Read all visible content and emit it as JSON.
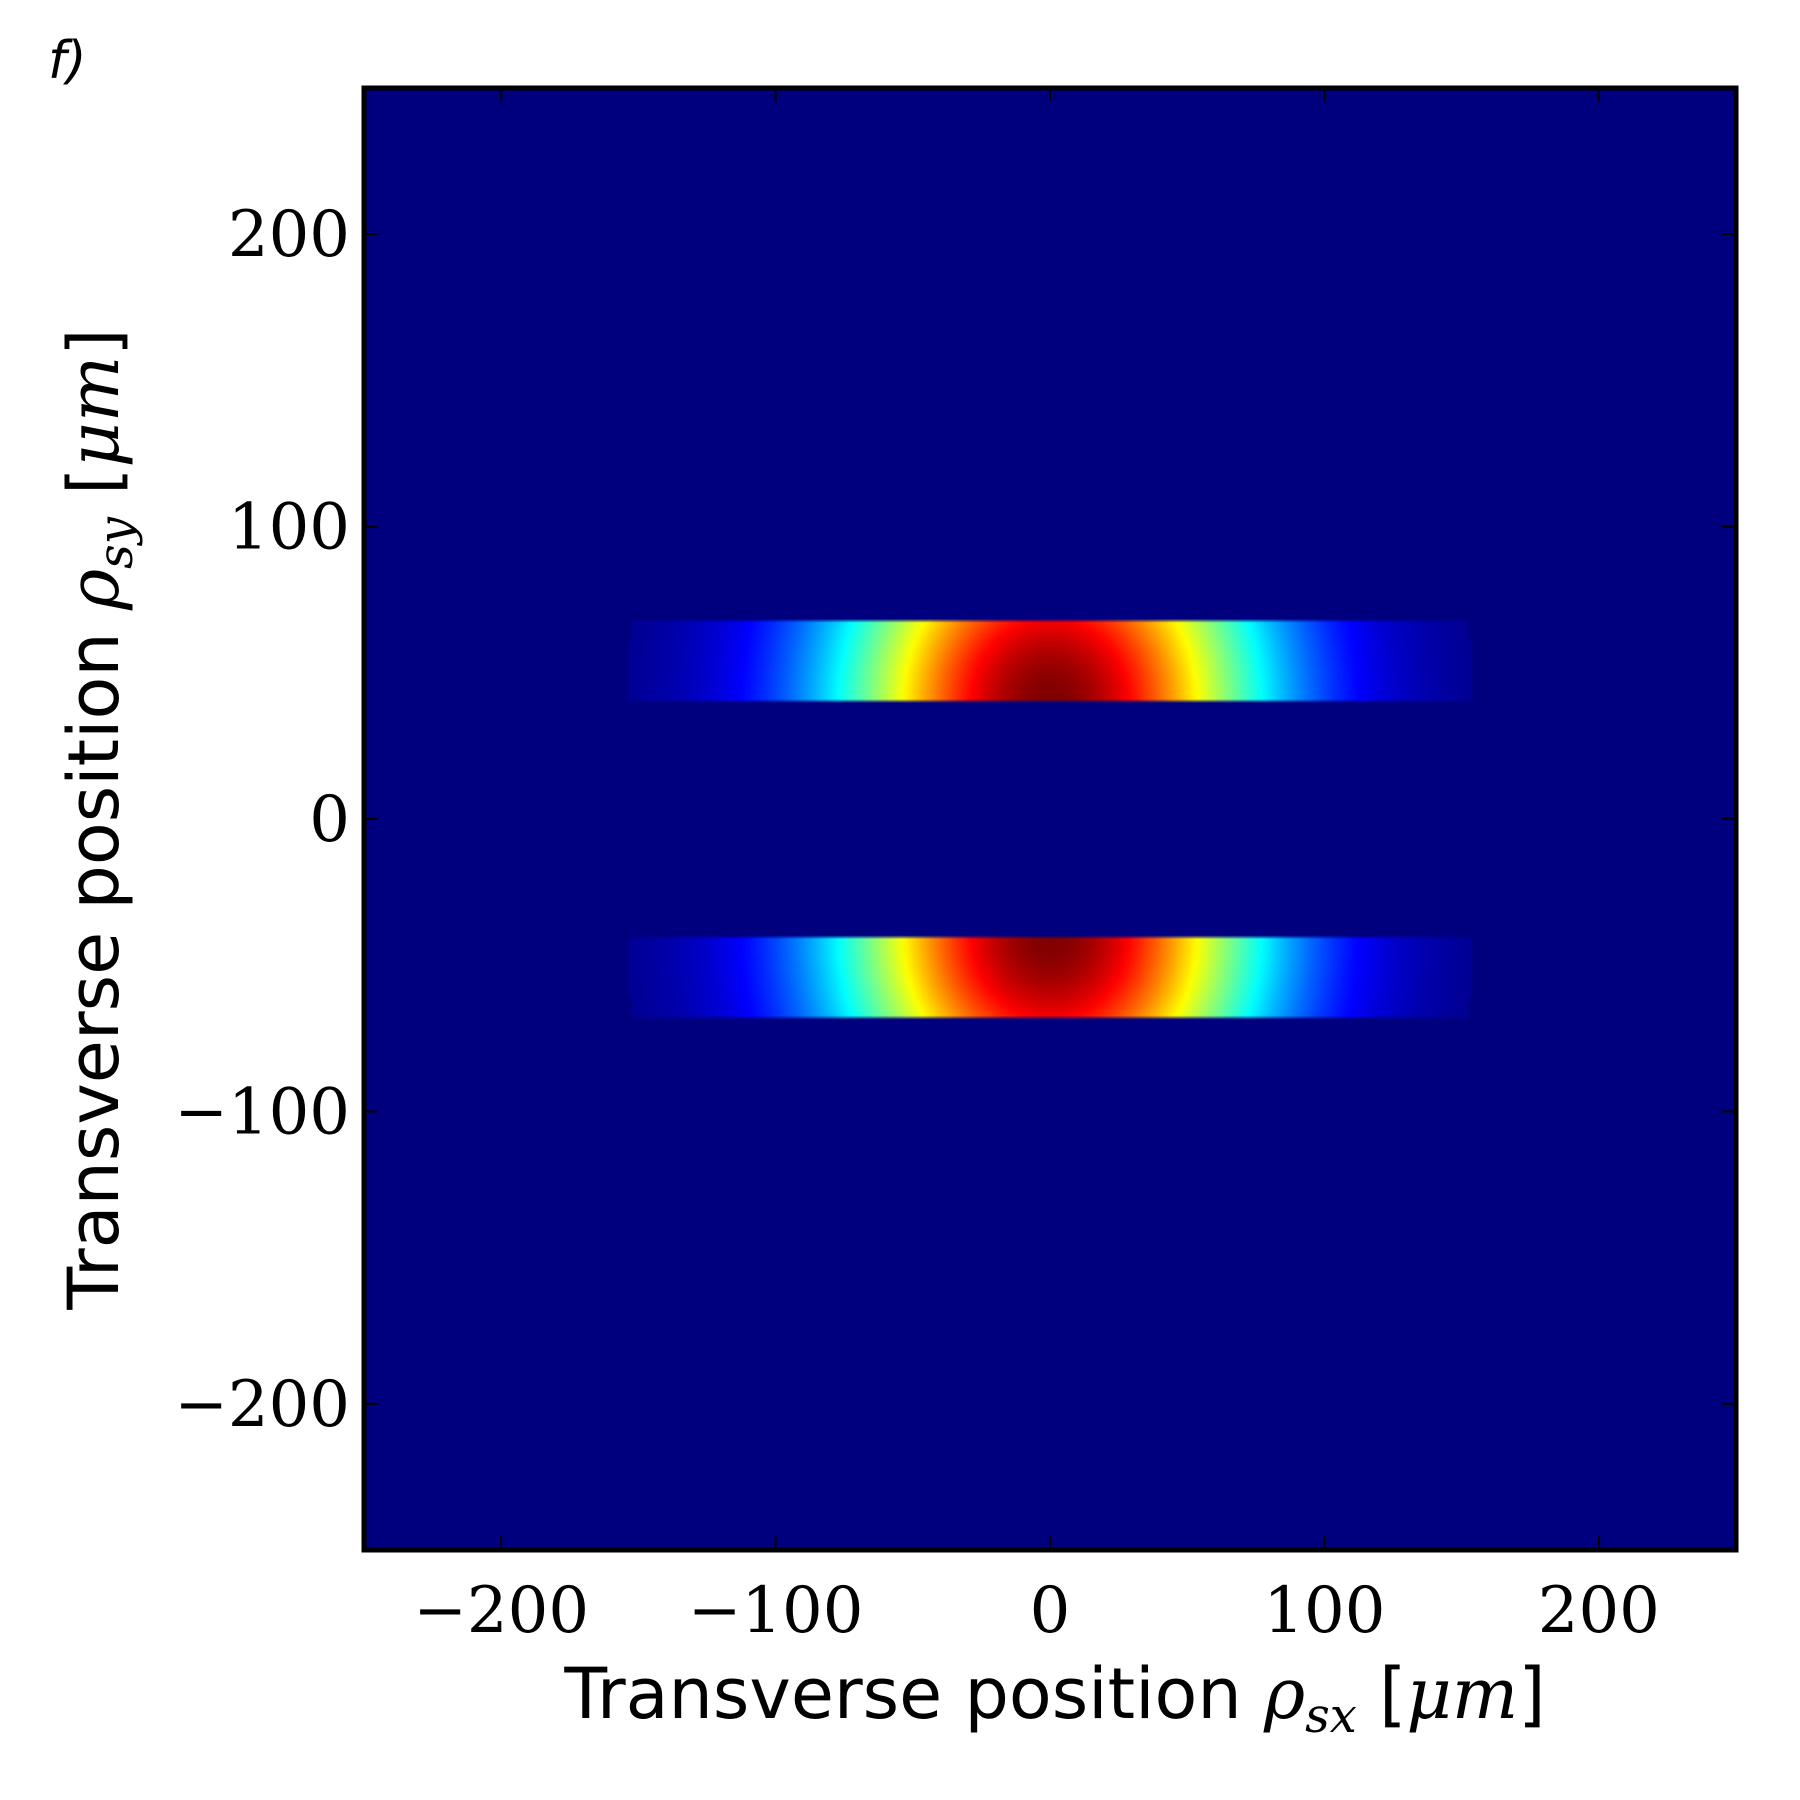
{
  "panel_label": "f)",
  "chart_data": {
    "type": "heatmap",
    "title": "",
    "xlabel": {
      "text": "Transverse position ",
      "symbol": "ρ",
      "subscript": "sx",
      "unit_open": " [",
      "unit": "μm",
      "unit_close": "]"
    },
    "ylabel": {
      "text": "Transverse position ",
      "symbol": "ρ",
      "subscript": "sy",
      "unit_open": " [",
      "unit": "μm",
      "unit_close": "]"
    },
    "xlim": [
      -250,
      250
    ],
    "ylim": [
      -250,
      250
    ],
    "xticks": [
      -200,
      -100,
      0,
      100,
      200
    ],
    "yticks": [
      -200,
      -100,
      0,
      100,
      200
    ],
    "xtick_labels": [
      "−200",
      "−100",
      "0",
      "100",
      "200"
    ],
    "ytick_labels": [
      "−200",
      "−100",
      "0",
      "100",
      "200"
    ],
    "colormap": "jet",
    "background_color": "#00007f",
    "grid": false,
    "features": [
      {
        "name": "upper-lobe",
        "x_center": 0,
        "y_min": 40,
        "y_max": 68,
        "half_width": 115,
        "peak_at_y": 40
      },
      {
        "name": "lower-lobe",
        "x_center": 0,
        "y_min": -68,
        "y_max": -40,
        "half_width": 115,
        "peak_at_y": -40
      }
    ]
  }
}
